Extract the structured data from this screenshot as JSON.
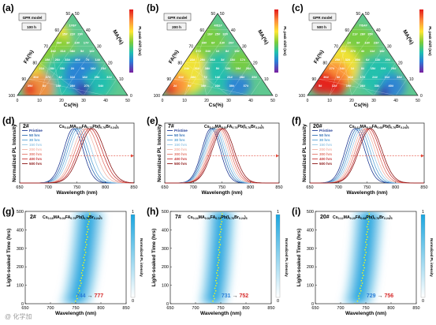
{
  "panels": {
    "a": "(a)",
    "b": "(b)",
    "c": "(c)",
    "d": "(d)",
    "e": "(e)",
    "f": "(f)",
    "g": "(g)",
    "h": "(h)",
    "i": "(i)"
  },
  "ternary": {
    "model_label": "GPR model",
    "times": [
      "100 h",
      "200 h",
      "500 h"
    ],
    "left_axis": "FA(%)",
    "right_axis": "MA(%)",
    "bottom_axis": "Cs(%)",
    "ticks": [
      "0",
      "10",
      "20",
      "30",
      "40",
      "50"
    ],
    "left_ticks": [
      "50",
      "60",
      "70",
      "80",
      "90",
      "100"
    ],
    "right_ticks": [
      "50",
      "40",
      "30",
      "20",
      "10",
      "0"
    ],
    "colorbar_label": "PL peak shift (nm)",
    "samples": [
      [
        "1#",
        "2#",
        "3#",
        "4#",
        "5#",
        "6#",
        "7#",
        "8#",
        "9#",
        "10#",
        "11#",
        "12#",
        "13#",
        "14#",
        "15#",
        "16#",
        "17#",
        "18#",
        "19#",
        "20#",
        "21#",
        "22#",
        "23#",
        "24#",
        "25#",
        "26#",
        "27#",
        "28#",
        "29#",
        "30#",
        "31#",
        "32#",
        "33#",
        "34#",
        "35#",
        "36#",
        "37#",
        "38#",
        "39#",
        "40#"
      ]
    ],
    "colors": {
      "c_red": "#e31a1c",
      "c_orange": "#fd8d3c",
      "c_yellow": "#fee634",
      "c_green": "#7ccd3a",
      "c_teal": "#1fc0b0",
      "c_blue": "#2b7fd8",
      "c_navy": "#3a2fa8",
      "c_purple": "#7a1fa0"
    }
  },
  "pl_plots": {
    "ylabel": "Normalized PL Intensity",
    "xlabel": "Wavelength (nm)",
    "xticks": [
      "650",
      "700",
      "750",
      "800",
      "850"
    ],
    "samples": [
      "2#",
      "7#",
      "20#"
    ],
    "compositions": [
      {
        "cs": "Cs",
        "cs_sub": "0.18",
        "ma": "MA",
        "ma_sub": "0.03",
        "fa": "FA",
        "fa_sub": "0.79",
        "pb": "Pb(I",
        "i_sub": "0.76",
        "br": "Br",
        "br_sub": "0.24",
        "end": ")",
        "end_sub": "3"
      },
      {
        "cs": "Cs",
        "cs_sub": "0.24",
        "ma": "MA",
        "ma_sub": "0.02",
        "fa": "FA",
        "fa_sub": "0.74",
        "pb": "Pb(I",
        "i_sub": "0.76",
        "br": "Br",
        "br_sub": "0.24",
        "end": ")",
        "end_sub": "3"
      },
      {
        "cs": "Cs",
        "cs_sub": "0.12",
        "ma": "MA",
        "ma_sub": "0.20",
        "fa": "FA",
        "fa_sub": "0.68",
        "pb": "Pb(I",
        "i_sub": "0.76",
        "br": "Br",
        "br_sub": "0.24",
        "end": ")",
        "end_sub": "3"
      }
    ],
    "legend": [
      "Pristine",
      "50 hrs",
      "30 hrs",
      "150 hrs",
      "200 hrs",
      "300 hrs",
      "400 hrs",
      "500 hrs"
    ],
    "legend_colors": [
      "#1f3a93",
      "#2f6eb5",
      "#5aa3d6",
      "#9bc9e6",
      "#f2b5a8",
      "#e2766a",
      "#c93a3a",
      "#8c1515"
    ]
  },
  "heatmaps": {
    "ylabel": "Light-soaked Time (hrs)",
    "xlabel": "Wavelength (nm)",
    "xticks": [
      "650",
      "700",
      "750",
      "800",
      "850"
    ],
    "yticks": [
      "0",
      "100",
      "200",
      "300",
      "400",
      "500"
    ],
    "colorbar_label": "Normalized PL intensity",
    "colorbar_ticks": [
      "1",
      "0"
    ],
    "samples": [
      "2#",
      "7#",
      "20#"
    ],
    "arrow": "→",
    "start_peaks": [
      "744",
      "731",
      "729"
    ],
    "end_peaks": [
      "777",
      "752",
      "756"
    ],
    "compositions": [
      {
        "cs": "Cs",
        "cs_sub": "0.18",
        "ma": "MA",
        "ma_sub": "0.03",
        "fa": "FA",
        "fa_sub": "0.79",
        "pb": "Pb(I",
        "i_sub": "0.76",
        "br": "Br",
        "br_sub": "0.24",
        "end": ")",
        "end_sub": "3"
      },
      {
        "cs": "Cs",
        "cs_sub": "0.24",
        "ma": "MA",
        "ma_sub": "0.02",
        "fa": "FA",
        "fa_sub": "0.74",
        "pb": "Pb(I",
        "i_sub": "0.76",
        "br": "Br",
        "br_sub": "0.24",
        "end": ")",
        "end_sub": "3"
      },
      {
        "cs": "Cs",
        "cs_sub": "0.12",
        "ma": "MA",
        "ma_sub": "0.20",
        "fa": "FA",
        "fa_sub": "0.68",
        "pb": "Pb(I",
        "i_sub": "0.76",
        "br": "Br",
        "br_sub": "0.24",
        "end": ")",
        "end_sub": "3"
      }
    ]
  },
  "watermark": "@ 化学加",
  "chart_data": [
    {
      "type": "heatmap",
      "subtype": "ternary",
      "title": "GPR model 100 h",
      "axes": {
        "left": "FA(%)",
        "right": "MA(%)",
        "bottom": "Cs(%)"
      },
      "bottom_range": [
        0,
        50
      ],
      "left_range": [
        50,
        100
      ],
      "right_range": [
        0,
        50
      ],
      "colorbar_label": "PL peak shift (nm)"
    },
    {
      "type": "heatmap",
      "subtype": "ternary",
      "title": "GPR model 200 h",
      "axes": {
        "left": "FA(%)",
        "right": "MA(%)",
        "bottom": "Cs(%)"
      },
      "bottom_range": [
        0,
        50
      ],
      "left_range": [
        50,
        100
      ],
      "right_range": [
        0,
        50
      ],
      "colorbar_label": "PL peak shift (nm)"
    },
    {
      "type": "heatmap",
      "subtype": "ternary",
      "title": "GPR model 500 h",
      "axes": {
        "left": "FA(%)",
        "right": "MA(%)",
        "bottom": "Cs(%)"
      },
      "bottom_range": [
        0,
        50
      ],
      "left_range": [
        50,
        100
      ],
      "right_range": [
        0,
        50
      ],
      "colorbar_label": "PL peak shift (nm)"
    },
    {
      "type": "line",
      "sample": "2#",
      "xlabel": "Wavelength (nm)",
      "ylabel": "Normalized PL Intensity",
      "xlim": [
        650,
        850
      ],
      "ylim": [
        0,
        1.1
      ],
      "series": [
        {
          "name": "Pristine",
          "peak": 744,
          "fwhm": 40
        },
        {
          "name": "50 hrs",
          "peak": 748,
          "fwhm": 41
        },
        {
          "name": "30 hrs",
          "peak": 752,
          "fwhm": 42
        },
        {
          "name": "150 hrs",
          "peak": 757,
          "fwhm": 44
        },
        {
          "name": "200 hrs",
          "peak": 763,
          "fwhm": 46
        },
        {
          "name": "300 hrs",
          "peak": 768,
          "fwhm": 48
        },
        {
          "name": "400 hrs",
          "peak": 773,
          "fwhm": 49
        },
        {
          "name": "500 hrs",
          "peak": 777,
          "fwhm": 50
        }
      ]
    },
    {
      "type": "line",
      "sample": "7#",
      "xlabel": "Wavelength (nm)",
      "ylabel": "Normalized PL Intensity",
      "xlim": [
        650,
        850
      ],
      "ylim": [
        0,
        1.1
      ],
      "series": [
        {
          "name": "Pristine",
          "peak": 731,
          "fwhm": 38
        },
        {
          "name": "50 hrs",
          "peak": 734,
          "fwhm": 39
        },
        {
          "name": "30 hrs",
          "peak": 737,
          "fwhm": 40
        },
        {
          "name": "150 hrs",
          "peak": 740,
          "fwhm": 41
        },
        {
          "name": "200 hrs",
          "peak": 743,
          "fwhm": 42
        },
        {
          "name": "300 hrs",
          "peak": 746,
          "fwhm": 43
        },
        {
          "name": "400 hrs",
          "peak": 749,
          "fwhm": 44
        },
        {
          "name": "500 hrs",
          "peak": 752,
          "fwhm": 45
        }
      ]
    },
    {
      "type": "line",
      "sample": "20#",
      "xlabel": "Wavelength (nm)",
      "ylabel": "Normalized PL Intensity",
      "xlim": [
        650,
        850
      ],
      "ylim": [
        0,
        1.1
      ],
      "series": [
        {
          "name": "Pristine",
          "peak": 729,
          "fwhm": 40
        },
        {
          "name": "50 hrs",
          "peak": 733,
          "fwhm": 41
        },
        {
          "name": "30 hrs",
          "peak": 737,
          "fwhm": 42
        },
        {
          "name": "150 hrs",
          "peak": 741,
          "fwhm": 43
        },
        {
          "name": "200 hrs",
          "peak": 745,
          "fwhm": 44
        },
        {
          "name": "300 hrs",
          "peak": 749,
          "fwhm": 45
        },
        {
          "name": "400 hrs",
          "peak": 753,
          "fwhm": 46
        },
        {
          "name": "500 hrs",
          "peak": 756,
          "fwhm": 47
        }
      ]
    },
    {
      "type": "heatmap",
      "sample": "2#",
      "xlabel": "Wavelength (nm)",
      "ylabel": "Light-soaked Time (hrs)",
      "xlim": [
        650,
        850
      ],
      "ylim": [
        0,
        500
      ],
      "peak_start": 744,
      "peak_end": 777,
      "fwhm": 45
    },
    {
      "type": "heatmap",
      "sample": "7#",
      "xlabel": "Wavelength (nm)",
      "ylabel": "Light-soaked Time (hrs)",
      "xlim": [
        650,
        850
      ],
      "ylim": [
        0,
        500
      ],
      "peak_start": 731,
      "peak_end": 752,
      "fwhm": 42
    },
    {
      "type": "heatmap",
      "sample": "20#",
      "xlabel": "Wavelength (nm)",
      "ylabel": "Light-soaked Time (hrs)",
      "xlim": [
        650,
        850
      ],
      "ylim": [
        0,
        500
      ],
      "peak_start": 729,
      "peak_end": 756,
      "fwhm": 44
    }
  ]
}
